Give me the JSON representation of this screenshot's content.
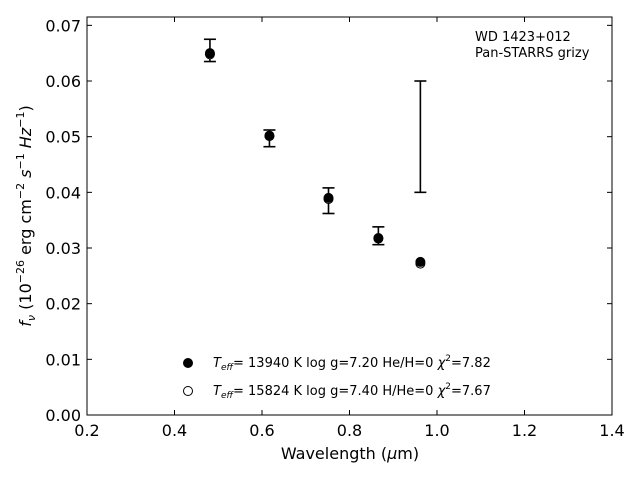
{
  "chart_data": {
    "type": "scatter",
    "xlabel_main": "Wavelength (",
    "xlabel_mu": "μ",
    "xlabel_tail": "m)",
    "ylabel_main": "f",
    "ylabel_sub": "ν",
    "ylabel_units_a": " (10",
    "ylabel_exp1": "−26",
    "ylabel_units_b": " erg cm",
    "ylabel_exp2": "−2",
    "ylabel_units_c": " s",
    "ylabel_exp3": "−1",
    "ylabel_units_d": " Hz",
    "ylabel_exp4": "−1",
    "ylabel_units_e": ")",
    "xlim": [
      0.2,
      1.4
    ],
    "ylim": [
      0.0,
      0.0715
    ],
    "xticks": [
      0.2,
      0.4,
      0.6,
      0.8,
      1.0,
      1.2,
      1.4
    ],
    "xtick_labels": [
      "0.2",
      "0.4",
      "0.6",
      "0.8",
      "1.0",
      "1.2",
      "1.4"
    ],
    "yticks": [
      0.0,
      0.01,
      0.02,
      0.03,
      0.04,
      0.05,
      0.06,
      0.07
    ],
    "ytick_labels": [
      "0.00",
      "0.01",
      "0.02",
      "0.03",
      "0.04",
      "0.05",
      "0.06",
      "0.07"
    ],
    "grid": false,
    "annotation": [
      "WD 1423+012",
      "Pan-STARRS grizy"
    ],
    "annotation_position": "top-right",
    "observed": {
      "x": [
        0.481,
        0.617,
        0.752,
        0.866,
        0.962
      ],
      "y": [
        0.0655,
        0.0497,
        0.0385,
        0.0322,
        0.05
      ],
      "yerr": [
        0.002,
        0.0015,
        0.0023,
        0.0016,
        0.01
      ]
    },
    "series": [
      {
        "marker": "filled-circle",
        "x": [
          0.481,
          0.617,
          0.752,
          0.866,
          0.962
        ],
        "y": [
          0.065,
          0.0502,
          0.039,
          0.0318,
          0.0275
        ]
      },
      {
        "marker": "open-circle",
        "x": [
          0.481,
          0.617,
          0.752,
          0.866,
          0.962
        ],
        "y": [
          0.0648,
          0.0501,
          0.0388,
          0.0317,
          0.0272
        ]
      }
    ],
    "legend": [
      {
        "teff_T": "T",
        "teff_sub": "eff",
        "text": "= 13940 K  log g=7.20  He/H=0  ",
        "chi": "χ",
        "chi_exp": "2",
        "chi_val": "=7.82"
      },
      {
        "teff_T": "T",
        "teff_sub": "eff",
        "text": "= 15824 K  log g=7.40  H/He=0  ",
        "chi": "χ",
        "chi_exp": "2",
        "chi_val": "=7.67"
      }
    ],
    "legend_position": "lower-center"
  }
}
